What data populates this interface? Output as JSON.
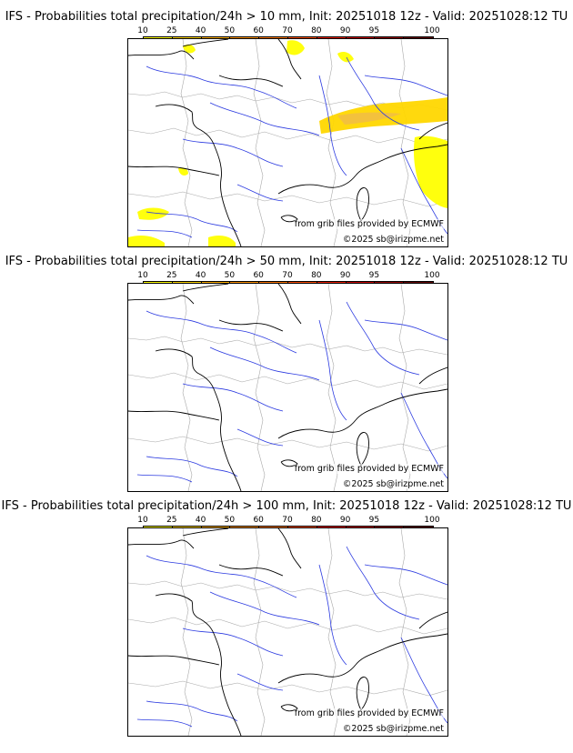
{
  "legend": {
    "ticks": [
      "10",
      "25",
      "40",
      "50",
      "60",
      "70",
      "80",
      "90",
      "95",
      "100"
    ],
    "colors": [
      "#ffff00",
      "#ffd700",
      "#ffb000",
      "#ff9400",
      "#ff7800",
      "#ff5000",
      "#ee2000",
      "#cc0000",
      "#990000",
      "#660000"
    ]
  },
  "map_colors": {
    "coast": "#000000",
    "rivers": "#2b3ae0",
    "borders": "#a8a8a8",
    "precip_light": "#ffff00",
    "precip_mid": "#ffd700",
    "precip_high": "#f2c040"
  },
  "panels": [
    {
      "title": "IFS - Probabilities total precipitation/24h > 10 mm, Init: 20251018 12z - Valid: 20251028:12 TU",
      "source_credit": "from grib files provided by ECMWF",
      "copyright": "©2025 sb@irizpme.net",
      "has_precip": true
    },
    {
      "title": "IFS - Probabilities total precipitation/24h > 50 mm, Init: 20251018 12z - Valid: 20251028:12 TU",
      "source_credit": "from grib files provided by ECMWF",
      "copyright": "©2025 sb@irizpme.net",
      "has_precip": false
    },
    {
      "title": "IFS - Probabilities total precipitation/24h > 100 mm, Init: 20251018 12z - Valid: 20251028:12 TU",
      "source_credit": "from grib files provided by ECMWF",
      "copyright": "©2025 sb@irizpme.net",
      "has_precip": false
    }
  ]
}
